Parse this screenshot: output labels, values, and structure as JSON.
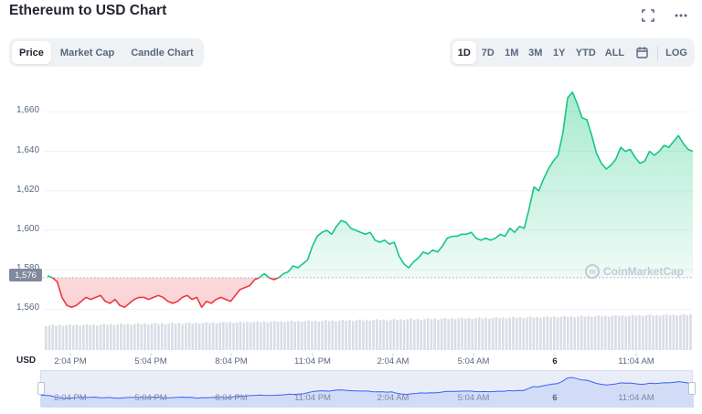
{
  "header": {
    "title": "Ethereum to USD Chart",
    "fullscreen_icon": "fullscreen-icon",
    "more_icon": "more-horizontal-icon"
  },
  "chart_tabs": [
    {
      "label": "Price",
      "active": true
    },
    {
      "label": "Market Cap",
      "active": false
    },
    {
      "label": "Candle Chart",
      "active": false
    }
  ],
  "ranges": [
    {
      "label": "1D",
      "active": true
    },
    {
      "label": "7D",
      "active": false
    },
    {
      "label": "1M",
      "active": false
    },
    {
      "label": "3M",
      "active": false
    },
    {
      "label": "1Y",
      "active": false
    },
    {
      "label": "YTD",
      "active": false
    },
    {
      "label": "ALL",
      "active": false
    }
  ],
  "calendar_icon": "calendar-icon",
  "log_label": "LOG",
  "currency_label": "USD",
  "current_price_tag": "1,576",
  "watermark": "CoinMarketCap",
  "colors": {
    "up": "#16c784",
    "down": "#ea3943",
    "axis_text": "#58667e",
    "grid": "#eff2f5",
    "navigator_line": "#3861fb"
  },
  "chart_data": {
    "type": "line",
    "title": "Ethereum to USD Chart",
    "xlabel": "",
    "ylabel": "USD",
    "ylim": [
      1550,
      1675
    ],
    "y_ticks": [
      "1,560",
      "1,580",
      "1,600",
      "1,620",
      "1,640",
      "1,660"
    ],
    "x_ticks": [
      "2:04 PM",
      "5:04 PM",
      "8:04 PM",
      "11:04 PM",
      "2:04 AM",
      "5:04 AM",
      "6",
      "11:04 AM"
    ],
    "reference_price": 1576,
    "grid": true,
    "series": [
      {
        "values": [
          1577,
          1576,
          1574,
          1566,
          1562,
          1561,
          1562,
          1564,
          1566,
          1565,
          1566,
          1567,
          1564,
          1563,
          1565,
          1562,
          1561,
          1563,
          1565,
          1566,
          1566,
          1565,
          1566,
          1567,
          1566,
          1564,
          1563,
          1564,
          1566,
          1567,
          1565,
          1566,
          1561,
          1564,
          1563,
          1565,
          1566,
          1565,
          1564,
          1567,
          1570,
          1571,
          1572,
          1575,
          1576,
          1578,
          1576,
          1575,
          1576,
          1578,
          1579,
          1582,
          1581,
          1583,
          1585,
          1592,
          1597,
          1599,
          1600,
          1598,
          1602,
          1605,
          1604,
          1601,
          1600,
          1599,
          1598,
          1599,
          1595,
          1594,
          1595,
          1593,
          1594,
          1587,
          1583,
          1581,
          1584,
          1586,
          1589,
          1588,
          1590,
          1589,
          1592,
          1596,
          1597,
          1597,
          1598,
          1598,
          1599,
          1596,
          1595,
          1596,
          1595,
          1596,
          1598,
          1597,
          1601,
          1599,
          1602,
          1601,
          1611,
          1622,
          1620,
          1626,
          1631,
          1635,
          1638,
          1649,
          1667,
          1670,
          1664,
          1657,
          1656,
          1648,
          1639,
          1634,
          1631,
          1633,
          1636,
          1642,
          1640,
          1641,
          1637,
          1634,
          1635,
          1640,
          1638,
          1640,
          1643,
          1642,
          1645,
          1648,
          1644,
          1641,
          1640
        ]
      }
    ]
  }
}
